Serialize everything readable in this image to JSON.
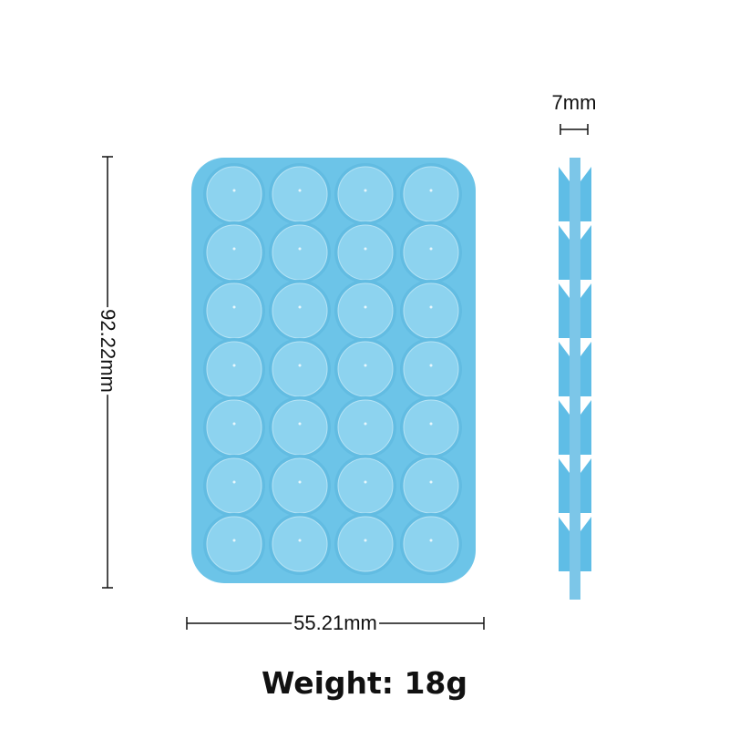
{
  "dimensions": {
    "height_label": "92.22mm",
    "width_label": "55.21mm",
    "thickness_label": "7mm"
  },
  "weight_label": "Weight: 18g",
  "product": {
    "color": "#6cc4e8",
    "cup_color": "#8dd3ef",
    "rows": 7,
    "columns": 4
  }
}
